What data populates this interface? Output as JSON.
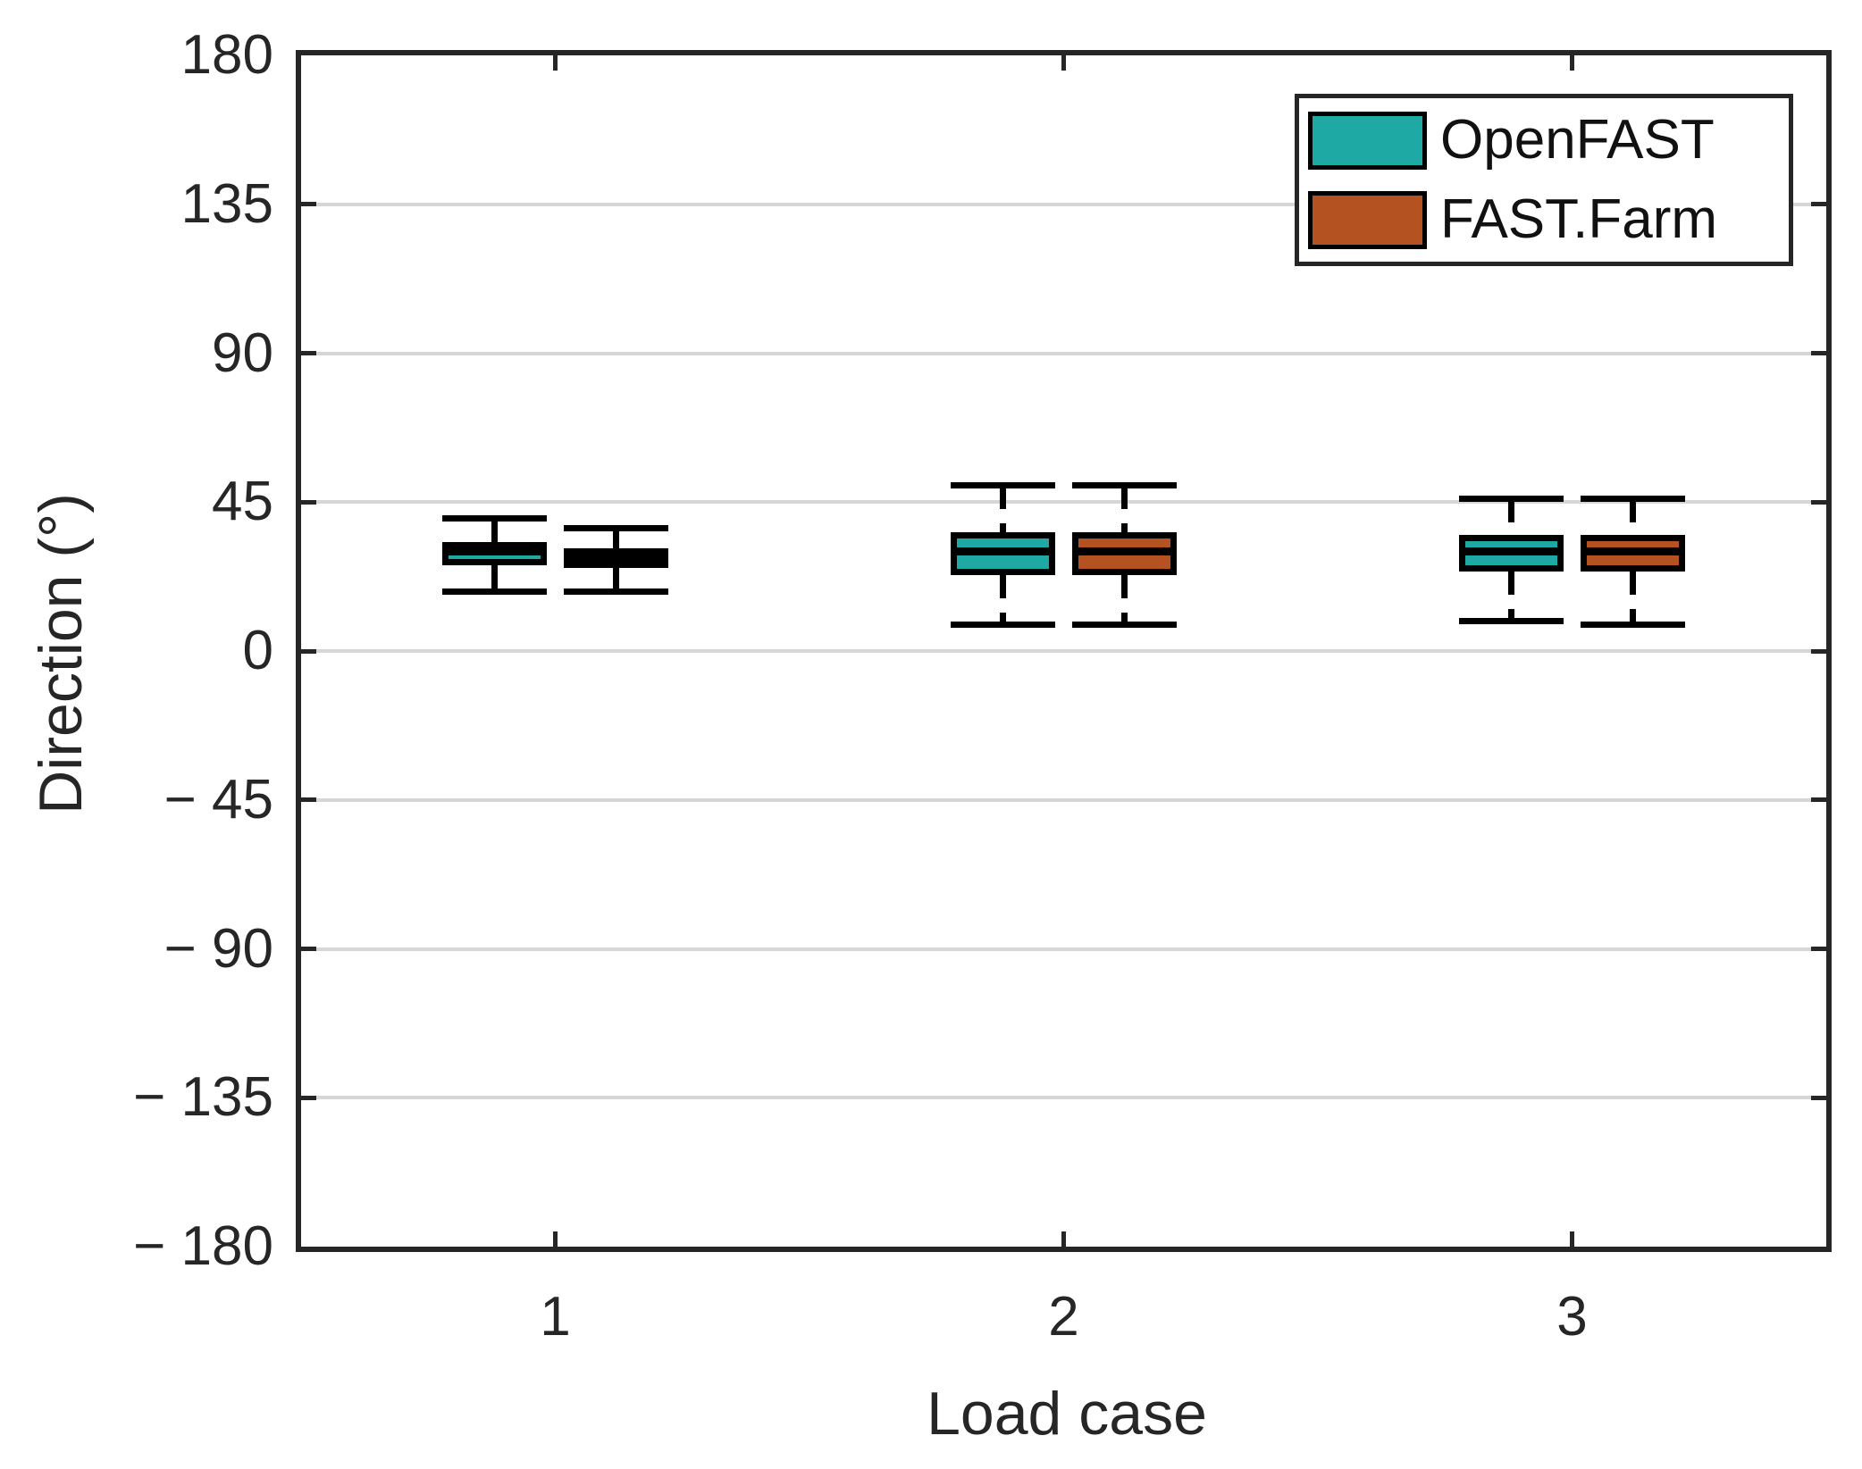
{
  "figure": {
    "background": "#ffffff",
    "frame_color": "#262626",
    "grid_color": "#d6d6d6",
    "text_color": "#262626",
    "box_outline_color": "#000000"
  },
  "chart_data": {
    "type": "boxplot",
    "title": "",
    "xlabel": "Load case",
    "ylabel": "Direction (°)",
    "ylim": [
      -180,
      180
    ],
    "yticks": [
      180,
      135,
      90,
      45,
      0,
      -45,
      -90,
      -135,
      -180
    ],
    "ytick_labels": [
      "180",
      "135",
      "90",
      "45",
      "0",
      "− 45",
      "− 90",
      "− 135",
      "− 180"
    ],
    "categories": [
      "1",
      "2",
      "3"
    ],
    "grid": "horizontal-only",
    "legend": {
      "position": "top-right",
      "entries": [
        {
          "label": "OpenFAST",
          "color": "#1FA9A5"
        },
        {
          "label": "FAST.Farm",
          "color": "#B45221"
        }
      ]
    },
    "series": [
      {
        "name": "OpenFAST",
        "color": "#1FA9A5",
        "boxes": [
          {
            "category": "1",
            "whisker_low": 18,
            "q1": 26,
            "median": 30,
            "q3": 33,
            "whisker_high": 40
          },
          {
            "category": "2",
            "whisker_low": 8,
            "q1": 23,
            "median": 30,
            "q3": 36,
            "whisker_high": 50
          },
          {
            "category": "3",
            "whisker_low": 9,
            "q1": 24,
            "median": 30,
            "q3": 35,
            "whisker_high": 46
          }
        ]
      },
      {
        "name": "FAST.Farm",
        "color": "#B45221",
        "boxes": [
          {
            "category": "1",
            "whisker_low": 18,
            "q1": 25,
            "median": 28,
            "q3": 31,
            "whisker_high": 37
          },
          {
            "category": "2",
            "whisker_low": 8,
            "q1": 23,
            "median": 30,
            "q3": 36,
            "whisker_high": 50
          },
          {
            "category": "3",
            "whisker_low": 8,
            "q1": 24,
            "median": 30,
            "q3": 35,
            "whisker_high": 46
          }
        ]
      }
    ]
  }
}
